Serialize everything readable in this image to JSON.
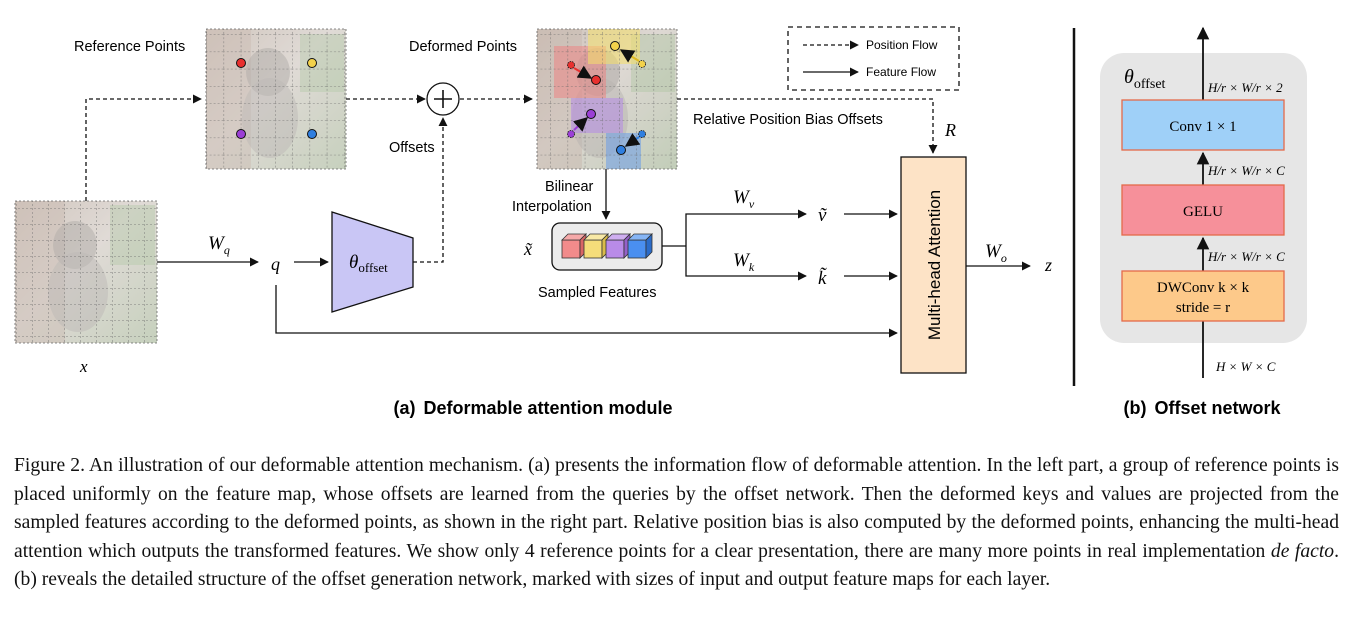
{
  "module_a": {
    "reference_points_label": "Reference Points",
    "deformed_points_label": "Deformed Points",
    "offsets_label": "Offsets",
    "rel_pos_label": "Relative Position Bias Offsets",
    "r_label": "R",
    "bilinear_line1": "Bilinear",
    "bilinear_line2": "Interpolation",
    "sampled_features_label": "Sampled Features",
    "x_label": "x",
    "wq_label": "W",
    "wq_sub": "q",
    "q_label": "q",
    "theta_label": "θ",
    "theta_sub": "offset",
    "x_tilde_label": "x̃",
    "wv_label": "W",
    "wv_sub": "v",
    "wk_label": "W",
    "wk_sub": "k",
    "v_tilde_label": "ṽ",
    "k_tilde_label": "k̃",
    "mha_label": "Multi-head Attention",
    "wo_label": "W",
    "wo_sub": "o",
    "z_label": "z",
    "legend_position": "Position Flow",
    "legend_feature": "Feature Flow",
    "title_prefix": "(a)",
    "title": "Deformable attention module"
  },
  "module_b": {
    "theta_label": "θ",
    "theta_sub": "offset",
    "conv_label": "Conv 1 × 1",
    "gelu_label": "GELU",
    "dwconv_line1": "DWConv k × k",
    "dwconv_line2": "stride = r",
    "size_top": "H/r × W/r × 2",
    "size_mid1": "H/r × W/r × C",
    "size_mid2": "H/r × W/r × C",
    "size_bottom": "H × W × C",
    "title_prefix": "(b)",
    "title": "Offset network"
  },
  "caption": {
    "part1": "Figure 2. An illustration of our deformable attention mechanism. (a) presents the information flow of deformable attention. In the left part, a group of reference points is placed uniformly on the feature map, whose offsets are learned from the queries by the offset network. Then the deformed keys and values are projected from the sampled features according to the deformed points, as shown in the right part. Relative position bias is also computed by the deformed points, enhancing the multi-head attention which outputs the transformed features.  We show only 4 reference points for a clear presentation, there are many more points in real implementation ",
    "italic": "de facto",
    "part2": ". (b) reveals the detailed structure of the offset generation network, marked with sizes of input and output feature maps for each layer."
  },
  "colors": {
    "point_red": "#e8302f",
    "point_yellow": "#f3d24b",
    "point_purple": "#9b3fd6",
    "point_blue": "#2f7fe0",
    "theta_fill": "#c9c6f5",
    "mha_fill": "#fde3c6",
    "conv_fill": "#9fd0f8",
    "gelu_fill": "#f6909a",
    "dwconv_fill": "#fdc98a",
    "panel_b_bg": "#e6e6e6"
  }
}
